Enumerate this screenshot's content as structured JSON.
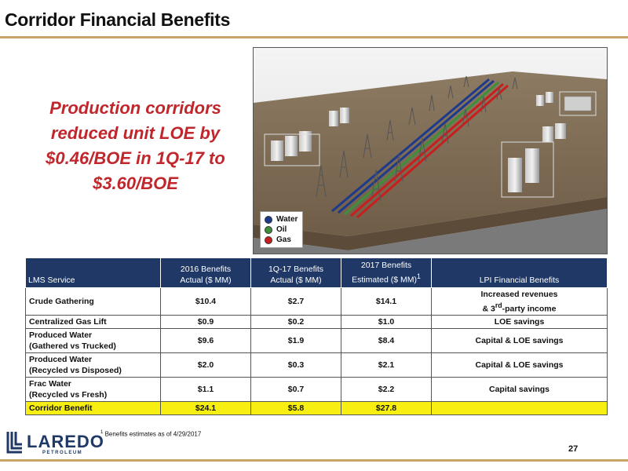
{
  "header": {
    "title": "Corridor Financial Benefits"
  },
  "headline": {
    "lines": [
      "Production corridors",
      "reduced unit LOE by",
      "$0.46/BOE in 1Q-17 to",
      "$3.60/BOE"
    ]
  },
  "legend": {
    "items": [
      {
        "label": "Water",
        "color": "#1e3a8a"
      },
      {
        "label": "Oil",
        "color": "#3f8f3a"
      },
      {
        "label": "Gas",
        "color": "#c81e1e"
      }
    ]
  },
  "table": {
    "headers": {
      "service": "LMS Service",
      "col2_line1": "2016 Benefits",
      "col2_line2": "Actual ($ MM)",
      "col3_line1": "1Q-17 Benefits",
      "col3_line2": "Actual ($ MM)",
      "col4_line1": "2017 Benefits",
      "col4_line2": "Estimated ($ MM)",
      "col4_sup": "1",
      "col5": "LPI Financial Benefits"
    },
    "rows": [
      {
        "service_line1": "Crude Gathering",
        "service_line2": "",
        "actual_2016": "$10.4",
        "actual_1q17": "$2.7",
        "estimated_2017": "$14.1",
        "benefit_line1": "Increased revenues",
        "benefit_line2_pre": "& 3",
        "benefit_line2_sup": "rd",
        "benefit_line2_post": "-party income"
      },
      {
        "service_line1": "Centralized Gas Lift",
        "service_line2": "",
        "actual_2016": "$0.9",
        "actual_1q17": "$0.2",
        "estimated_2017": "$1.0",
        "benefit": "LOE savings"
      },
      {
        "service_line1": "Produced Water",
        "service_line2": "(Gathered vs Trucked)",
        "actual_2016": "$9.6",
        "actual_1q17": "$1.9",
        "estimated_2017": "$8.4",
        "benefit": "Capital & LOE savings"
      },
      {
        "service_line1": "Produced Water",
        "service_line2": "(Recycled vs Disposed)",
        "actual_2016": "$2.0",
        "actual_1q17": "$0.3",
        "estimated_2017": "$2.1",
        "benefit": "Capital & LOE savings"
      },
      {
        "service_line1": "Frac Water",
        "service_line2": "(Recycled vs Fresh)",
        "actual_2016": "$1.1",
        "actual_1q17": "$0.7",
        "estimated_2017": "$2.2",
        "benefit": "Capital savings"
      }
    ],
    "total": {
      "label": "Corridor Benefit",
      "actual_2016": "$24.1",
      "actual_1q17": "$5.8",
      "estimated_2017": "$27.8",
      "benefit": ""
    }
  },
  "footnote": {
    "sup": "1",
    "text": " Benefits estimates as of 4/29/2017"
  },
  "page_number": "27",
  "logo": {
    "word": "LAREDO",
    "sub": "PETROLEUM"
  },
  "colors": {
    "title_rule": "#c8a46a",
    "headline": "#c0272d",
    "table_header": "#1f3866",
    "total_row": "#f7ee12"
  }
}
